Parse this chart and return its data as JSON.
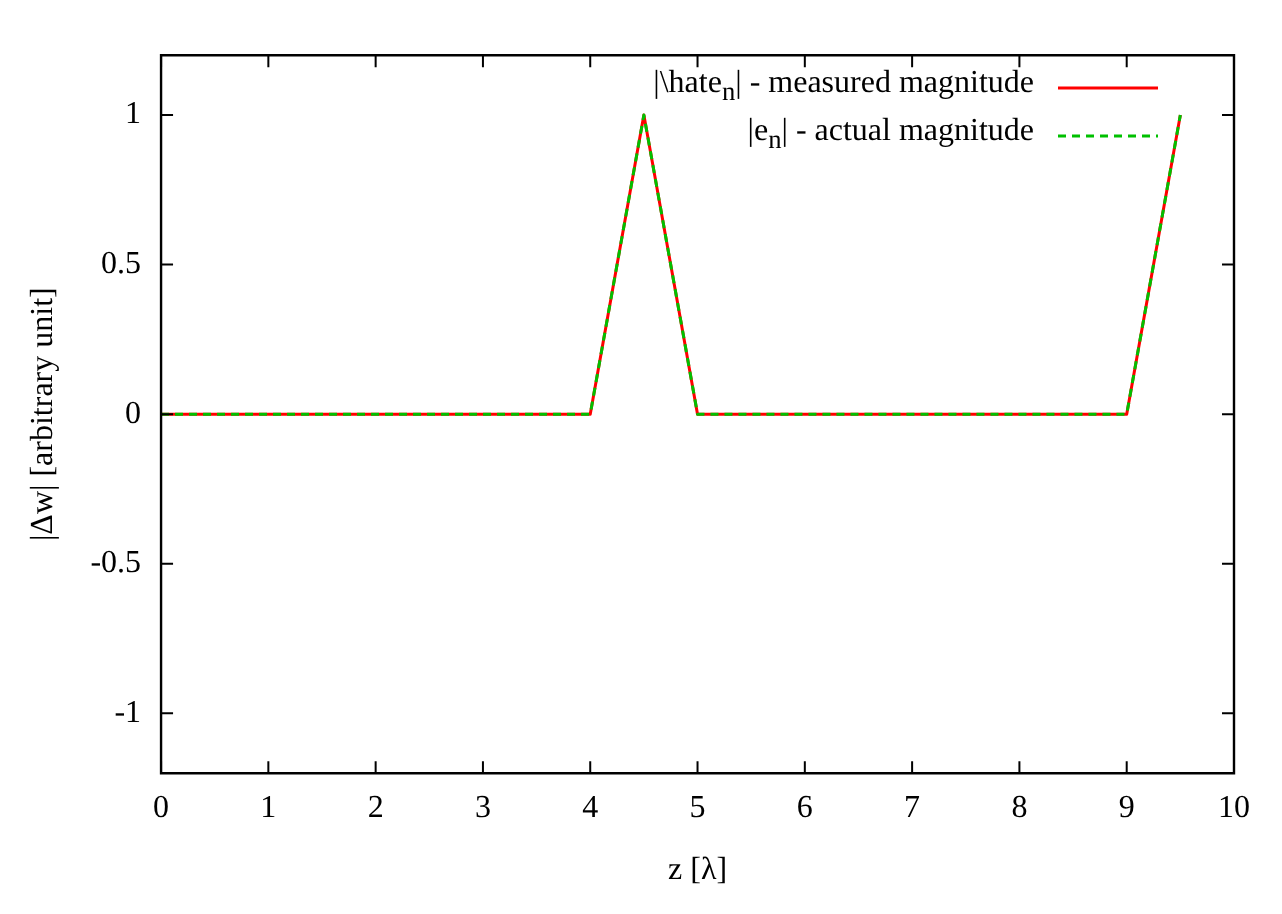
{
  "chart_data": {
    "type": "line",
    "xlabel": "z [λ]",
    "ylabel": "|Δw| [arbitrary unit]",
    "x": [
      0,
      4,
      4.5,
      5,
      9,
      9.5
    ],
    "series": [
      {
        "name": "|\\hate$_{n}$| - measured magnitude",
        "color": "#ff0000",
        "line_style": "solid",
        "values": [
          0,
          0,
          1,
          0,
          0,
          1
        ]
      },
      {
        "name": "|e$_{n}$| - actual magnitude",
        "color": "#00c000",
        "line_style": "dashed",
        "values": [
          0,
          0,
          1,
          0,
          0,
          1
        ]
      }
    ],
    "xlim": [
      0,
      10
    ],
    "xticks": [
      0,
      1,
      2,
      3,
      4,
      5,
      6,
      7,
      8,
      9,
      10
    ],
    "ylim": [
      -1.2,
      1.2
    ],
    "yticks": [
      -1,
      -0.5,
      0,
      0.5,
      1
    ],
    "grid": false,
    "legend": "top right",
    "marker": "none"
  }
}
